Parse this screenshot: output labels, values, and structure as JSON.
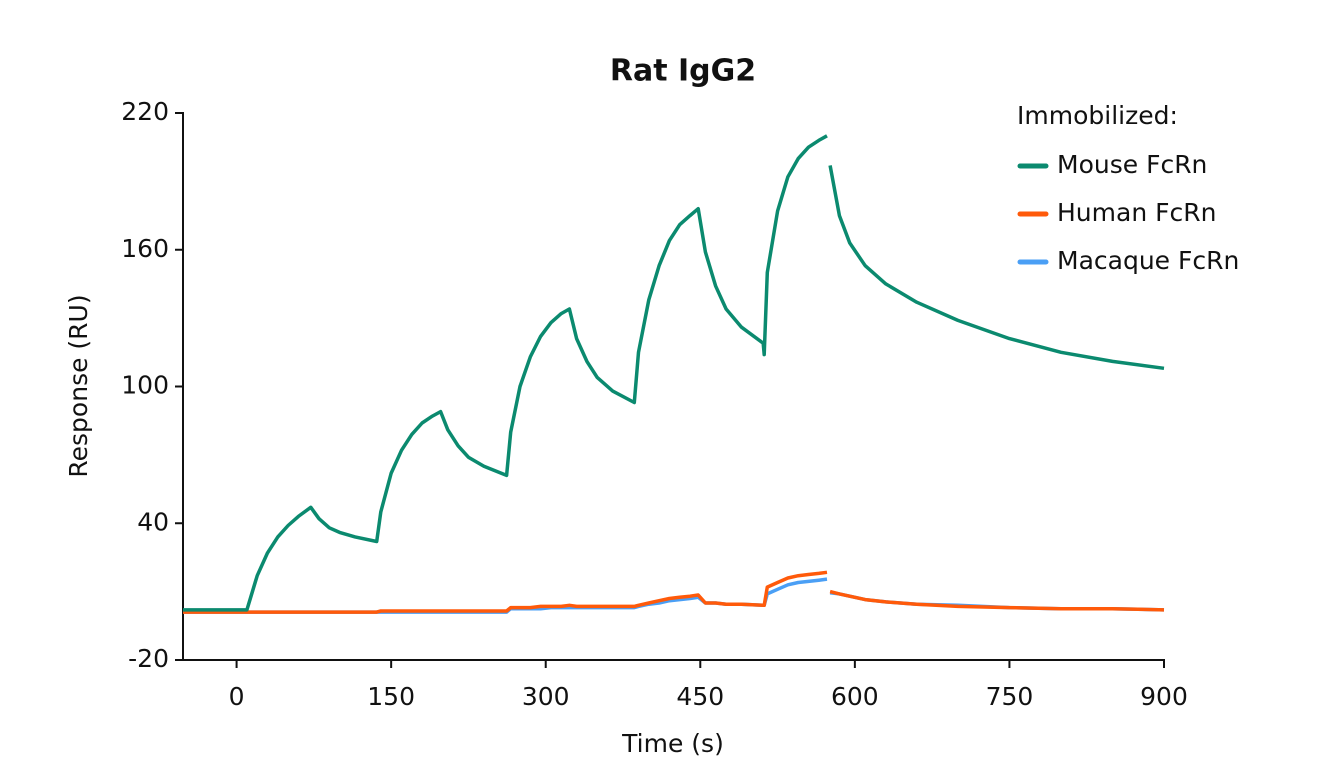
{
  "chart_data": {
    "type": "line",
    "title": "Rat IgG2",
    "x_label": "Time (s)",
    "y_label": "Response (RU)",
    "legend_title": "Immobilized:",
    "legend": "upper right",
    "grid": false,
    "xlim": [
      -52,
      900
    ],
    "xticks": [
      0,
      150,
      300,
      450,
      600,
      750,
      900
    ],
    "ylim": [
      -20,
      220
    ],
    "yticks": [
      -20,
      40,
      100,
      160,
      220
    ],
    "x": [
      -52,
      10,
      20,
      30,
      40,
      50,
      60,
      72,
      80,
      90,
      100,
      115,
      136,
      140,
      150,
      160,
      170,
      180,
      190,
      198,
      205,
      215,
      225,
      240,
      262,
      266,
      275,
      285,
      295,
      305,
      315,
      323,
      330,
      340,
      350,
      365,
      386,
      390,
      400,
      410,
      420,
      430,
      440,
      448,
      455,
      465,
      475,
      490,
      511,
      512,
      515,
      525,
      535,
      545,
      555,
      565,
      573,
      574,
      576,
      585,
      595,
      610,
      630,
      660,
      700,
      750,
      800,
      850,
      900
    ],
    "series": [
      {
        "name": "Mouse FcRn",
        "color": "#0b8a6f",
        "values": [
          2,
          2,
          17,
          27,
          34,
          39,
          43,
          47,
          42,
          38,
          36,
          34,
          32,
          45,
          62,
          72,
          79,
          84,
          87,
          89,
          81,
          74,
          69,
          65,
          61,
          80,
          100,
          113,
          122,
          128,
          132,
          134,
          121,
          111,
          104,
          98,
          93,
          115,
          138,
          153,
          164,
          171,
          175,
          178,
          159,
          144,
          134,
          126,
          119,
          114,
          150,
          177,
          192,
          200,
          205,
          208,
          210,
          null,
          197,
          175,
          163,
          153,
          145,
          137,
          129,
          121,
          115,
          111,
          108
        ]
      },
      {
        "name": "Human FcRn",
        "color": "#ff5a0a",
        "values": [
          1,
          1,
          1,
          1,
          1,
          1,
          1,
          1,
          1,
          1,
          1,
          1,
          1,
          1.5,
          1.5,
          1.5,
          1.5,
          1.5,
          1.5,
          1.5,
          1.5,
          1.5,
          1.5,
          1.5,
          1.5,
          3,
          3,
          3,
          3.5,
          3.5,
          3.5,
          4,
          3.5,
          3.5,
          3.5,
          3.5,
          3.5,
          4,
          5,
          6,
          7,
          7.5,
          8,
          8.5,
          5,
          5,
          4.5,
          4.5,
          4,
          4,
          12,
          14,
          16,
          17,
          17.5,
          18,
          18.5,
          null,
          10,
          9,
          8,
          6.5,
          5.5,
          4.5,
          3.5,
          3,
          2.5,
          2.5,
          2
        ]
      },
      {
        "name": "Macaque FcRn",
        "color": "#4a9ff5",
        "values": [
          1,
          1,
          1,
          1,
          1,
          1,
          1,
          1,
          1,
          1,
          1,
          1,
          1,
          1,
          1,
          1,
          1,
          1,
          1,
          1,
          1,
          1,
          1,
          1,
          1,
          2.5,
          2.5,
          2.5,
          2.5,
          3,
          3,
          3,
          3,
          3,
          3,
          3,
          3,
          3.5,
          4.5,
          5,
          6,
          6.5,
          7,
          7.5,
          5,
          5,
          4.5,
          4.5,
          4,
          4,
          9,
          11,
          13,
          14,
          14.5,
          15,
          15.5,
          null,
          9.5,
          9,
          8,
          6.5,
          5.5,
          4.5,
          4,
          3,
          2.5,
          2.5,
          2
        ]
      }
    ]
  }
}
